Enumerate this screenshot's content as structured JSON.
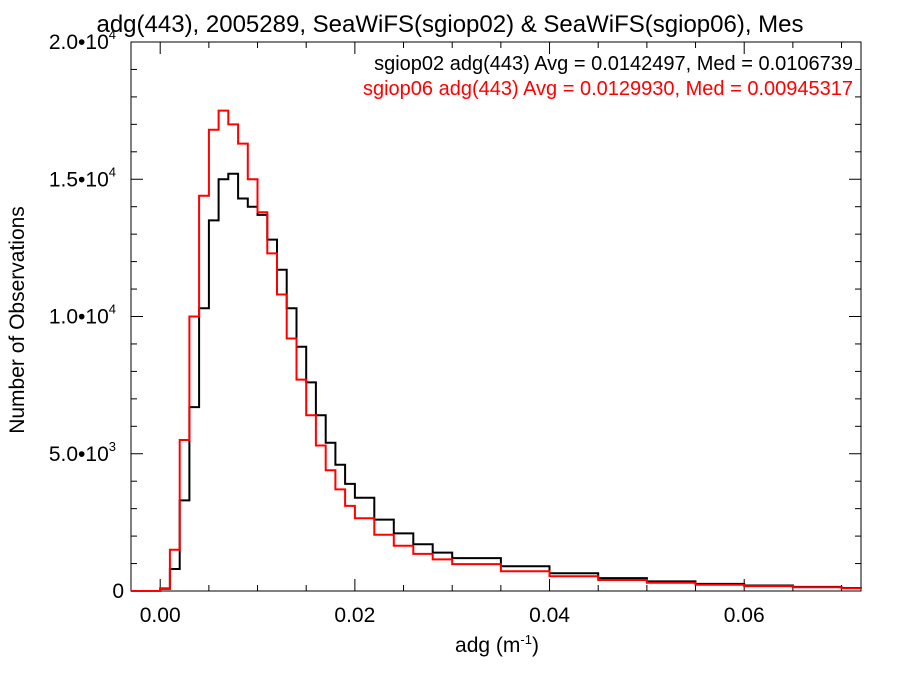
{
  "chart_data": {
    "type": "line",
    "title": "adg(443), 2005289, SeaWiFS(sgiop02) & SeaWiFS(sgiop06), Mes",
    "xlabel": "adg (m",
    "xlabel_sup": "-1",
    "xlabel_close": ")",
    "ylabel": "Number of Observations",
    "xlim": [
      -0.003,
      0.072
    ],
    "ylim": [
      0,
      20000
    ],
    "x_ticks": [
      {
        "value": 0.0,
        "label": "0.00"
      },
      {
        "value": 0.02,
        "label": "0.02"
      },
      {
        "value": 0.04,
        "label": "0.04"
      },
      {
        "value": 0.06,
        "label": "0.06"
      }
    ],
    "y_ticks": [
      {
        "value": 0,
        "mant": "0",
        "exp": ""
      },
      {
        "value": 5000,
        "mant": "5.0•10",
        "exp": "3"
      },
      {
        "value": 10000,
        "mant": "1.0•10",
        "exp": "4"
      },
      {
        "value": 15000,
        "mant": "1.5•10",
        "exp": "4"
      },
      {
        "value": 20000,
        "mant": "2.0•10",
        "exp": "4"
      }
    ],
    "legend_placement": "top-right",
    "series": [
      {
        "name": "sgiop02 adg(443) Avg = 0.0142497, Med = 0.0106739",
        "color": "#000000",
        "x": [
          -0.003,
          0.0,
          0.001,
          0.002,
          0.003,
          0.004,
          0.005,
          0.006,
          0.007,
          0.008,
          0.009,
          0.01,
          0.011,
          0.012,
          0.013,
          0.014,
          0.015,
          0.016,
          0.017,
          0.018,
          0.019,
          0.02,
          0.022,
          0.024,
          0.026,
          0.028,
          0.03,
          0.035,
          0.04,
          0.045,
          0.05,
          0.055,
          0.06,
          0.065,
          0.07,
          0.072
        ],
        "y": [
          0,
          80,
          800,
          3300,
          6700,
          10300,
          13500,
          15000,
          15200,
          14300,
          14000,
          13700,
          12800,
          11700,
          10300,
          8900,
          7600,
          6400,
          5400,
          4600,
          3900,
          3400,
          2600,
          2100,
          1700,
          1400,
          1200,
          900,
          650,
          470,
          350,
          260,
          200,
          150,
          110,
          100
        ]
      },
      {
        "name": "sgiop06 adg(443) Avg = 0.0129930, Med = 0.00945317",
        "color": "#ff0000",
        "x": [
          -0.003,
          0.0,
          0.001,
          0.002,
          0.003,
          0.004,
          0.005,
          0.006,
          0.007,
          0.008,
          0.009,
          0.01,
          0.011,
          0.012,
          0.013,
          0.014,
          0.015,
          0.016,
          0.017,
          0.018,
          0.019,
          0.02,
          0.022,
          0.024,
          0.026,
          0.028,
          0.03,
          0.035,
          0.04,
          0.045,
          0.05,
          0.055,
          0.06,
          0.065,
          0.07,
          0.072
        ],
        "y": [
          0,
          100,
          1500,
          5500,
          10000,
          14400,
          16800,
          17500,
          17000,
          16300,
          15000,
          13800,
          12300,
          10800,
          9200,
          7700,
          6400,
          5300,
          4400,
          3700,
          3100,
          2650,
          2050,
          1650,
          1350,
          1150,
          980,
          720,
          540,
          400,
          300,
          230,
          180,
          140,
          100,
          90
        ]
      }
    ]
  }
}
